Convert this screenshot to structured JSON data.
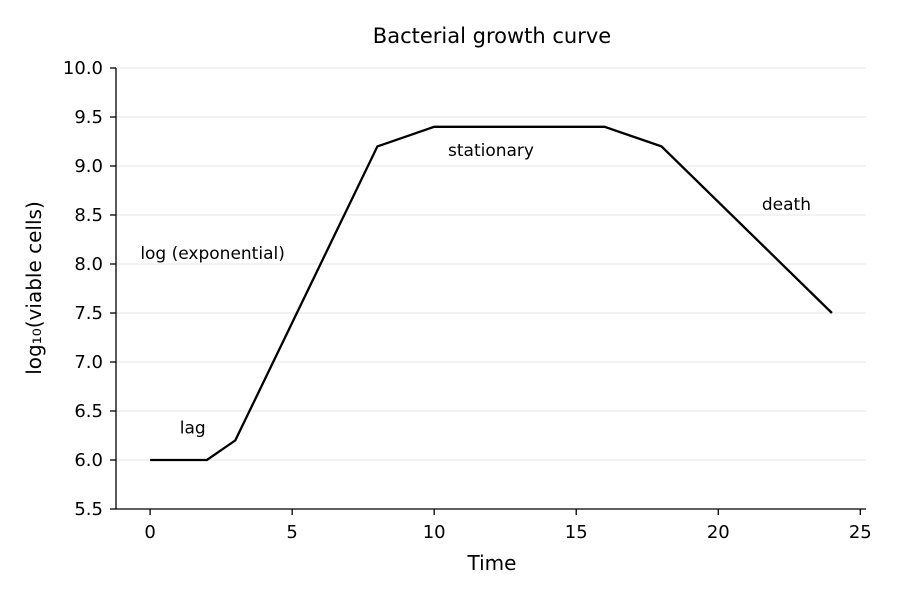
{
  "chart_data": {
    "type": "line",
    "title": "Bacterial growth curve",
    "xlabel": "Time",
    "ylabel": "log₁₀(viable cells)",
    "xlim": [
      -1.2,
      25.2
    ],
    "ylim": [
      5.5,
      10.0
    ],
    "x_ticks": [
      0,
      5,
      10,
      15,
      20,
      25
    ],
    "x_tick_labels": [
      "0",
      "5",
      "10",
      "15",
      "20",
      "25"
    ],
    "y_ticks": [
      5.5,
      6.0,
      6.5,
      7.0,
      7.5,
      8.0,
      8.5,
      9.0,
      9.5,
      10.0
    ],
    "y_tick_labels": [
      "5.5",
      "6.0",
      "6.5",
      "7.0",
      "7.5",
      "8.0",
      "8.5",
      "9.0",
      "9.5",
      "10.0"
    ],
    "grid": "horizontal",
    "line_color": "#000000",
    "series": [
      {
        "x": [
          0,
          2,
          3,
          8,
          10,
          16,
          18,
          24
        ],
        "y": [
          6.0,
          6.0,
          6.2,
          9.2,
          9.4,
          9.4,
          9.2,
          7.5
        ]
      }
    ],
    "annotations": [
      {
        "text": "lag",
        "x": 1.5,
        "y": 6.27
      },
      {
        "text": "log (exponential)",
        "x": 2.2,
        "y": 8.05
      },
      {
        "text": "stationary",
        "x": 12.0,
        "y": 9.1
      },
      {
        "text": "death",
        "x": 22.4,
        "y": 8.55
      }
    ]
  }
}
